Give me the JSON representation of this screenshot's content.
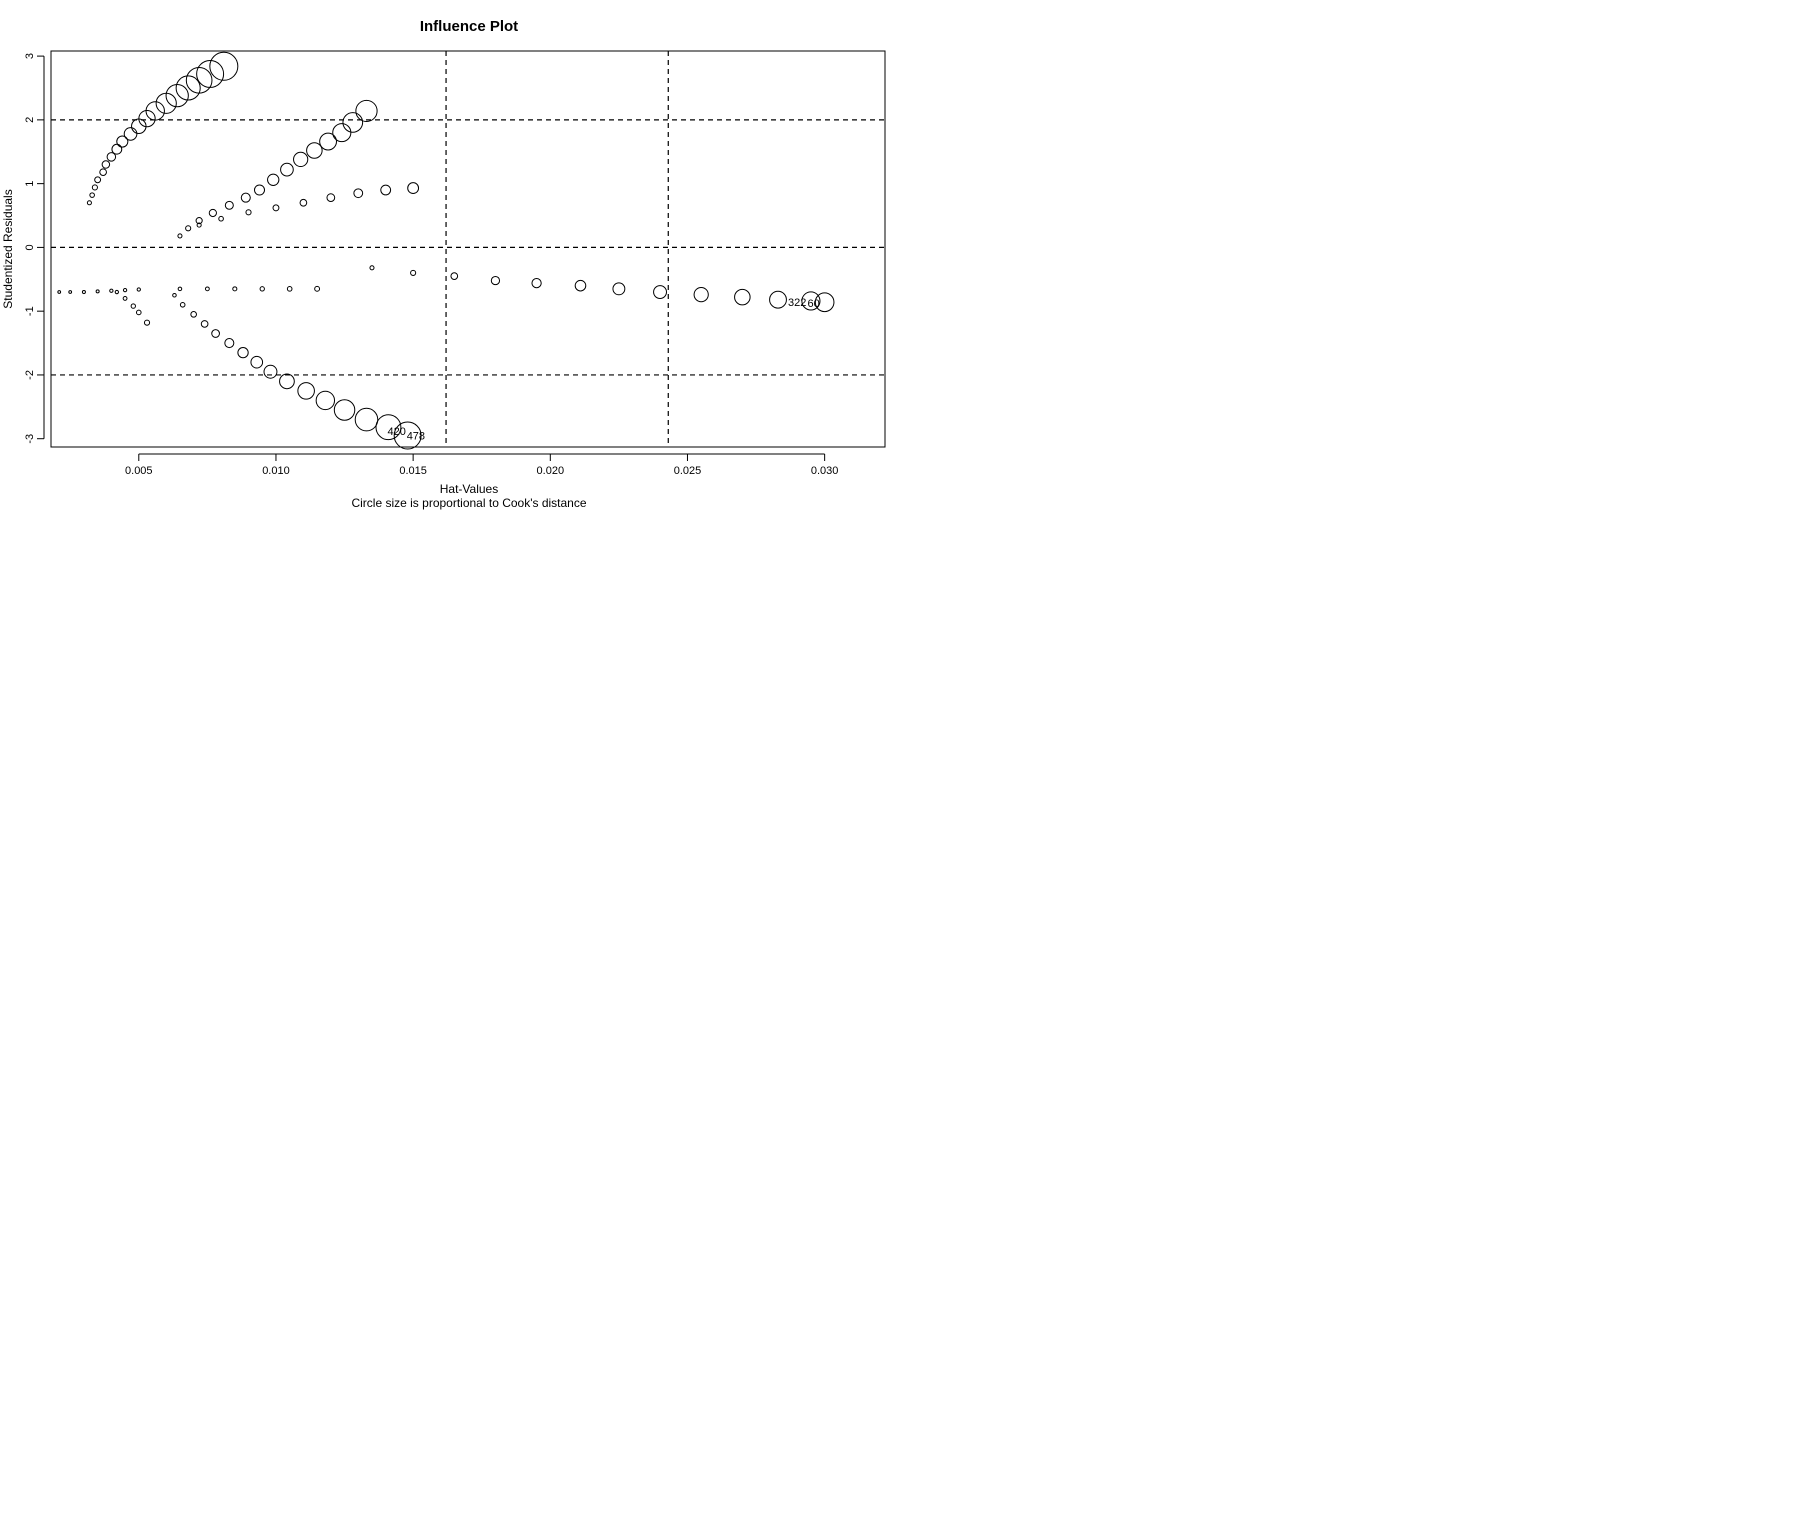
{
  "chart_data": {
    "type": "scatter",
    "title": "Influence Plot",
    "xlabel": "Hat-Values",
    "ylabel": "Studentized Residuals",
    "subtitle": "Circle size is proportional to Cook's distance",
    "xlim": [
      0.0018,
      0.0322
    ],
    "ylim": [
      -3.13,
      3.08
    ],
    "xticks": [
      0.005,
      0.01,
      0.015,
      0.02,
      0.025,
      0.03
    ],
    "xtick_labels": [
      "0.005",
      "0.010",
      "0.015",
      "0.020",
      "0.025",
      "0.030"
    ],
    "yticks": [
      -3,
      -2,
      -1,
      0,
      1,
      2,
      3
    ],
    "ytick_labels": [
      "-3",
      "-2",
      "-1",
      "0",
      "1",
      "2",
      "3"
    ],
    "reference_lines": {
      "horizontal": [
        -2,
        0,
        2
      ],
      "vertical": [
        0.0162,
        0.0243
      ]
    },
    "grid": false,
    "size_encoding": "Cook's distance",
    "series": [
      {
        "points": [
          [
            0.0032,
            0.7,
            0.08
          ],
          [
            0.0033,
            0.82,
            0.1
          ],
          [
            0.0034,
            0.94,
            0.12
          ],
          [
            0.0035,
            1.06,
            0.15
          ],
          [
            0.0037,
            1.18,
            0.18
          ],
          [
            0.0038,
            1.3,
            0.21
          ],
          [
            0.004,
            1.42,
            0.25
          ],
          [
            0.0042,
            1.54,
            0.3
          ],
          [
            0.0044,
            1.66,
            0.35
          ],
          [
            0.0047,
            1.78,
            0.41
          ],
          [
            0.005,
            1.9,
            0.48
          ],
          [
            0.0053,
            2.02,
            0.55
          ],
          [
            0.0056,
            2.14,
            0.63
          ],
          [
            0.006,
            2.26,
            0.7
          ],
          [
            0.0064,
            2.38,
            0.78
          ],
          [
            0.0068,
            2.5,
            0.85
          ],
          [
            0.0072,
            2.62,
            0.91
          ],
          [
            0.0076,
            2.72,
            0.96
          ],
          [
            0.0081,
            2.84,
            1.0
          ],
          [
            0.0065,
            0.18,
            0.08
          ],
          [
            0.0068,
            0.3,
            0.12
          ],
          [
            0.0072,
            0.42,
            0.16
          ],
          [
            0.0077,
            0.54,
            0.2
          ],
          [
            0.0083,
            0.66,
            0.23
          ],
          [
            0.0089,
            0.78,
            0.27
          ],
          [
            0.0094,
            0.9,
            0.31
          ],
          [
            0.0099,
            1.06,
            0.36
          ],
          [
            0.0104,
            1.22,
            0.41
          ],
          [
            0.0109,
            1.38,
            0.47
          ],
          [
            0.0114,
            1.52,
            0.52
          ],
          [
            0.0119,
            1.66,
            0.57
          ],
          [
            0.0124,
            1.8,
            0.62
          ],
          [
            0.0128,
            1.96,
            0.68
          ],
          [
            0.0133,
            2.14,
            0.74
          ],
          [
            0.0072,
            0.35,
            0.08
          ],
          [
            0.008,
            0.45,
            0.1
          ],
          [
            0.009,
            0.55,
            0.12
          ],
          [
            0.01,
            0.62,
            0.15
          ],
          [
            0.011,
            0.7,
            0.18
          ],
          [
            0.012,
            0.78,
            0.22
          ],
          [
            0.013,
            0.85,
            0.26
          ],
          [
            0.014,
            0.9,
            0.3
          ],
          [
            0.015,
            0.93,
            0.34
          ],
          [
            0.0021,
            -0.7,
            0.03
          ],
          [
            0.0025,
            -0.7,
            0.03
          ],
          [
            0.003,
            -0.7,
            0.04
          ],
          [
            0.0035,
            -0.69,
            0.04
          ],
          [
            0.004,
            -0.68,
            0.05
          ],
          [
            0.0045,
            -0.67,
            0.05
          ],
          [
            0.005,
            -0.66,
            0.05
          ],
          [
            0.0042,
            -0.7,
            0.05
          ],
          [
            0.0045,
            -0.8,
            0.07
          ],
          [
            0.0048,
            -0.92,
            0.09
          ],
          [
            0.005,
            -1.02,
            0.1
          ],
          [
            0.0053,
            -1.18,
            0.12
          ],
          [
            0.0065,
            -0.65,
            0.06
          ],
          [
            0.0075,
            -0.65,
            0.07
          ],
          [
            0.0085,
            -0.65,
            0.08
          ],
          [
            0.0095,
            -0.65,
            0.09
          ],
          [
            0.0105,
            -0.65,
            0.1
          ],
          [
            0.0115,
            -0.65,
            0.11
          ],
          [
            0.0063,
            -0.75,
            0.06
          ],
          [
            0.0066,
            -0.9,
            0.1
          ],
          [
            0.007,
            -1.05,
            0.14
          ],
          [
            0.0074,
            -1.2,
            0.18
          ],
          [
            0.0078,
            -1.35,
            0.22
          ],
          [
            0.0083,
            -1.5,
            0.27
          ],
          [
            0.0088,
            -1.65,
            0.32
          ],
          [
            0.0093,
            -1.8,
            0.37
          ],
          [
            0.0098,
            -1.95,
            0.42
          ],
          [
            0.0104,
            -2.1,
            0.49
          ],
          [
            0.0111,
            -2.25,
            0.56
          ],
          [
            0.0118,
            -2.4,
            0.63
          ],
          [
            0.0125,
            -2.55,
            0.71
          ],
          [
            0.0133,
            -2.7,
            0.79
          ],
          [
            0.0141,
            -2.82,
            0.88
          ],
          [
            0.0148,
            -2.95,
            0.96
          ],
          [
            0.0135,
            -0.32,
            0.08
          ],
          [
            0.015,
            -0.4,
            0.12
          ],
          [
            0.0165,
            -0.45,
            0.18
          ],
          [
            0.018,
            -0.52,
            0.24
          ],
          [
            0.0195,
            -0.56,
            0.28
          ],
          [
            0.0211,
            -0.6,
            0.33
          ],
          [
            0.0225,
            -0.65,
            0.38
          ],
          [
            0.024,
            -0.7,
            0.42
          ],
          [
            0.0255,
            -0.74,
            0.47
          ],
          [
            0.027,
            -0.78,
            0.52
          ],
          [
            0.0283,
            -0.82,
            0.57
          ],
          [
            0.0295,
            -0.84,
            0.62
          ],
          [
            0.03,
            -0.86,
            0.64
          ]
        ]
      }
    ],
    "labeled_points": [
      {
        "label": "420",
        "x": 0.0144,
        "y": -2.88
      },
      {
        "label": "478",
        "x": 0.0151,
        "y": -2.95
      },
      {
        "label": "322",
        "x": 0.029,
        "y": -0.86
      },
      {
        "label": "60",
        "x": 0.0296,
        "y": -0.87
      }
    ]
  }
}
